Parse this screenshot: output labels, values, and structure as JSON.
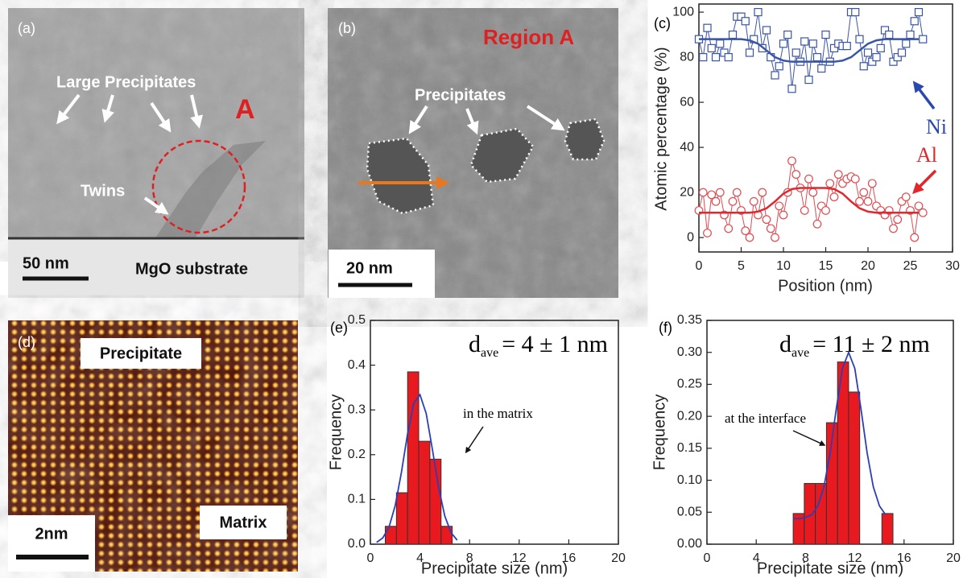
{
  "panels": {
    "a": {
      "label": "(a)",
      "large_precipitates": "Large Precipitates",
      "region": "A",
      "twins": "Twins",
      "scale": "50 nm",
      "substrate": "MgO substrate"
    },
    "b": {
      "label": "(b)",
      "region": "Region A",
      "precipitates": "Precipitates",
      "scale": "20 nm"
    },
    "d": {
      "label": "(d)",
      "precipitate": "Precipitate",
      "matrix": "Matrix",
      "scale": "2nm"
    }
  },
  "chart_data": [
    {
      "type": "line",
      "label": "(c)",
      "xlabel": "Position (nm)",
      "ylabel": "Atomic percentage (%)",
      "xlim": [
        0,
        30
      ],
      "xticks": [
        0,
        5,
        10,
        15,
        20,
        25,
        30
      ],
      "ylim": [
        -6.4,
        103.6
      ],
      "yticks": [
        0,
        20,
        40,
        60,
        80,
        100
      ],
      "x": [
        0,
        0.5,
        1,
        1.5,
        2,
        2.5,
        3,
        3.5,
        4,
        4.5,
        5,
        5.5,
        6,
        6.5,
        7,
        7.5,
        8,
        8.5,
        9,
        9.5,
        10,
        10.5,
        11,
        11.5,
        12,
        12.5,
        13,
        13.5,
        14,
        14.5,
        15,
        15.5,
        16,
        16.5,
        17,
        17.5,
        18,
        18.5,
        19,
        19.5,
        20,
        20.5,
        21,
        21.5,
        22,
        22.5,
        23,
        23.5,
        24,
        24.5,
        25,
        25.5,
        26,
        26.5
      ],
      "series": [
        {
          "name": "Ni",
          "color": "#3a54a8",
          "marker": "square",
          "values": [
            88,
            80,
            93,
            84,
            80,
            86,
            82,
            80,
            90,
            98,
            98,
            96,
            82,
            88,
            100,
            84,
            92,
            80,
            72,
            76,
            86,
            90,
            66,
            82,
            78,
            87,
            70,
            86,
            80,
            75,
            90,
            78,
            84,
            86,
            85,
            85,
            100,
            100,
            88,
            76,
            82,
            78,
            80,
            84,
            92,
            90,
            78,
            80,
            82,
            86,
            90,
            96,
            100,
            88
          ]
        },
        {
          "name": "Al",
          "color": "#e04a50",
          "marker": "circle",
          "values": [
            12,
            20,
            2,
            19,
            16,
            20,
            10,
            4,
            16,
            20,
            12,
            3,
            0,
            16,
            10,
            20,
            8,
            4,
            0,
            14,
            10,
            20,
            34,
            28,
            22,
            12,
            26,
            20,
            6,
            14,
            12,
            24,
            18,
            28,
            24,
            26,
            27,
            26,
            16,
            20,
            16,
            24,
            14,
            12,
            10,
            12,
            4,
            8,
            16,
            18,
            12,
            0,
            14,
            11
          ]
        }
      ],
      "fits": [
        {
          "color": "#3a54a8",
          "x": [
            0,
            1,
            2,
            3,
            4,
            5,
            6,
            7,
            8,
            9,
            10,
            11,
            12,
            13,
            14,
            15,
            16,
            17,
            18,
            19,
            20,
            21,
            22,
            23,
            24,
            25,
            26
          ],
          "values": [
            88,
            88,
            88,
            88,
            88,
            88,
            87.5,
            86,
            83,
            80,
            78.5,
            78,
            78,
            78,
            78,
            78,
            78,
            78.5,
            80,
            83,
            86,
            87.5,
            88,
            88,
            88,
            88,
            88
          ]
        },
        {
          "color": "#e0282e",
          "x": [
            0,
            1,
            2,
            3,
            4,
            5,
            6,
            7,
            8,
            9,
            10,
            11,
            12,
            13,
            14,
            15,
            16,
            17,
            18,
            19,
            20,
            21,
            22,
            23,
            24,
            25,
            26
          ],
          "values": [
            11,
            11,
            11,
            11,
            11,
            11,
            11,
            11.5,
            13,
            16,
            19.5,
            21.5,
            22,
            22,
            22,
            22,
            21.5,
            19.5,
            16,
            13,
            11.5,
            11,
            11,
            11,
            11,
            11,
            11
          ]
        }
      ]
    },
    {
      "type": "histogram",
      "label": "(e)",
      "xlabel": "Precipitate size (nm)",
      "ylabel": "Frequency",
      "xlim": [
        0,
        20
      ],
      "xticks": [
        0,
        4,
        8,
        12,
        16,
        20
      ],
      "ylim": [
        0,
        0.5
      ],
      "yticks": [
        {
          "value": 0,
          "label": "0.0"
        },
        0.1,
        0.2,
        0.3,
        0.4,
        0.5
      ],
      "bins": [
        1.2,
        2.1,
        3.0,
        3.9,
        4.8,
        5.7,
        6.6
      ],
      "values": [
        0.04,
        0.115,
        0.385,
        0.23,
        0.19,
        0.04
      ],
      "color": "#e8191f",
      "fit": {
        "color": "#2b3fb8",
        "x": [
          0.5,
          1,
          1.5,
          2,
          2.5,
          3,
          3.5,
          4,
          4.5,
          5,
          5.5,
          6,
          6.5,
          7
        ],
        "values": [
          0.004,
          0.014,
          0.038,
          0.086,
          0.16,
          0.247,
          0.315,
          0.334,
          0.292,
          0.212,
          0.127,
          0.063,
          0.026,
          0.009
        ]
      },
      "annotation": {
        "symbol": "d",
        "subscript": "ave",
        "text": "= 4 ± 1 nm"
      },
      "note": "in the matrix"
    },
    {
      "type": "histogram",
      "label": "(f)",
      "xlabel": "Precipitate size (nm)",
      "ylabel": "Frequency",
      "xlim": [
        0,
        20
      ],
      "xticks": [
        0,
        4,
        8,
        12,
        16,
        20
      ],
      "ylim": [
        0,
        0.35
      ],
      "yticks": [
        {
          "value": 0,
          "label": "0.00"
        },
        0.05,
        {
          "value": 0.1,
          "label": "0.10"
        },
        0.15,
        {
          "value": 0.2,
          "label": "0.20"
        },
        0.25,
        {
          "value": 0.3,
          "label": "0.30"
        },
        0.35
      ],
      "bins": [
        7,
        7.9,
        8.8,
        9.7,
        10.6,
        11.5,
        12.4,
        13.3,
        14.2,
        15.1
      ],
      "values": [
        0.048,
        0.095,
        0.095,
        0.19,
        0.285,
        0.238,
        0,
        0,
        0.048
      ],
      "color": "#e8191f",
      "fit": {
        "color": "#2b3fb8",
        "x": [
          7,
          7.5,
          8,
          8.5,
          9,
          9.5,
          10,
          10.5,
          11,
          11.5,
          12,
          12.5,
          13,
          13.5,
          14,
          14.5
        ],
        "values": [
          0.04,
          0.04,
          0.042,
          0.046,
          0.06,
          0.09,
          0.143,
          0.212,
          0.275,
          0.3,
          0.275,
          0.212,
          0.143,
          0.09,
          0.06,
          0.046
        ]
      },
      "annotation": {
        "symbol": "d",
        "subscript": "ave",
        "text": "= 11 ± 2 nm"
      },
      "note": "at the interface"
    }
  ]
}
